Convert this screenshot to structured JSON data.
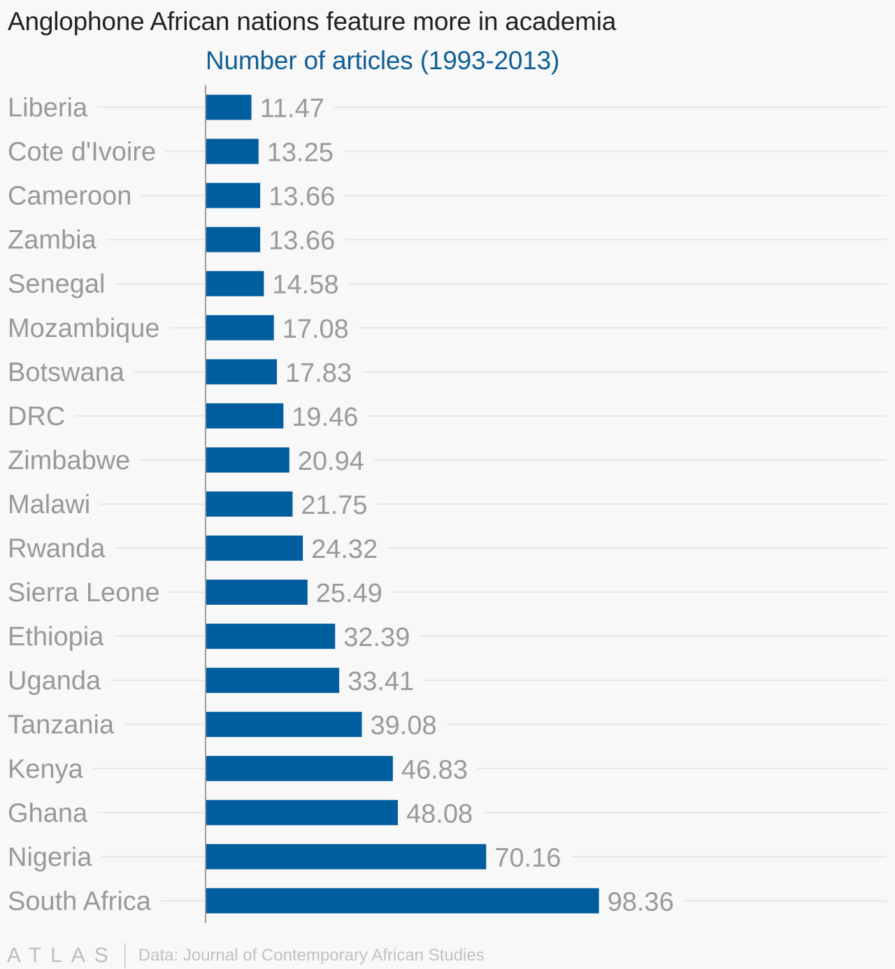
{
  "title": "Anglophone African nations feature more in academia",
  "subtitle": "Number of articles (1993-2013)",
  "footer": {
    "brand": "ATLAS",
    "source": "Data: Journal of Contemporary African Studies"
  },
  "colors": {
    "bar": "#005e9e",
    "label": "#999999",
    "value": "#9a9a9a",
    "grid": "#e6e6e6",
    "axis": "#9e9e9e"
  },
  "chart_data": {
    "type": "bar",
    "orientation": "horizontal",
    "title": "Anglophone African nations feature more in academia",
    "subtitle": "Number of articles (1993-2013)",
    "xlim": [
      0,
      100
    ],
    "grid": true,
    "legend": "none",
    "categories": [
      "Liberia",
      "Cote d'Ivoire",
      "Cameroon",
      "Zambia",
      "Senegal",
      "Mozambique",
      "Botswana",
      "DRC",
      "Zimbabwe",
      "Malawi",
      "Rwanda",
      "Sierra Leone",
      "Ethiopia",
      "Uganda",
      "Tanzania",
      "Kenya",
      "Ghana",
      "Nigeria",
      "South Africa"
    ],
    "values": [
      11.47,
      13.25,
      13.66,
      13.66,
      14.58,
      17.08,
      17.83,
      19.46,
      20.94,
      21.75,
      24.32,
      25.49,
      32.39,
      33.41,
      39.08,
      46.83,
      48.08,
      70.16,
      98.36
    ],
    "value_labels": [
      "11.47",
      "13.25",
      "13.66",
      "13.66",
      "14.58",
      "17.08",
      "17.83",
      "19.46",
      "20.94",
      "21.75",
      "24.32",
      "25.49",
      "32.39",
      "33.41",
      "39.08",
      "46.83",
      "48.08",
      "70.16",
      "98.36"
    ]
  }
}
